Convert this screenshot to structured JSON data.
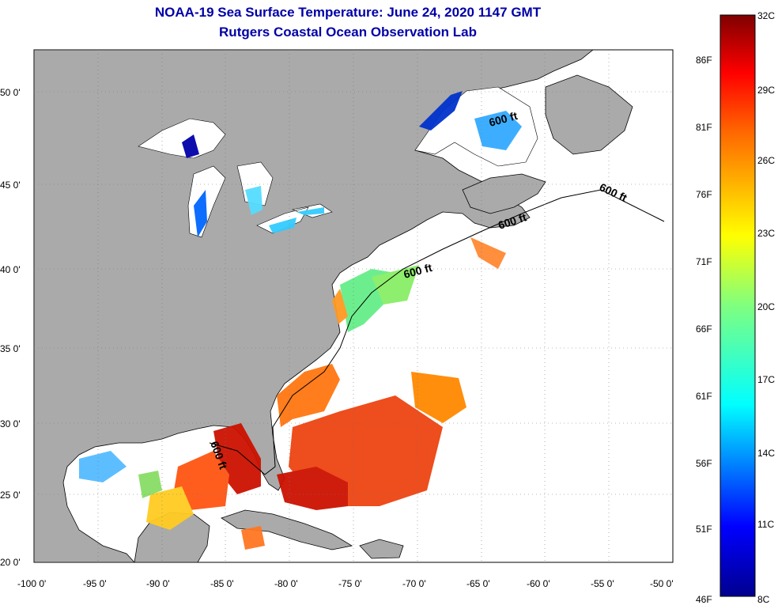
{
  "title": "NOAA-19 Sea Surface Temperature:  June 24, 2020 1147 GMT",
  "subtitle": "Rutgers Coastal Ocean Observation Lab",
  "lat_ticks": [
    "50 0'",
    "45 0'",
    "40 0'",
    "35 0'",
    "30 0'",
    "25 0'",
    "20 0'"
  ],
  "lon_ticks": [
    "-100 0'",
    "-95 0'",
    "-90 0'",
    "-85 0'",
    "-80 0'",
    "-75 0'",
    "-70 0'",
    "-65 0'",
    "-60 0'",
    "-55 0'",
    "-50 0'"
  ],
  "contour_labels": [
    "600 ft",
    "600 ft",
    "600 ft",
    "600 ft",
    "600 ft"
  ],
  "colorbar": {
    "celsius": [
      "32C",
      "29C",
      "26C",
      "23C",
      "20C",
      "17C",
      "14C",
      "11C",
      "8C"
    ],
    "fahrenheit": [
      "86F",
      "81F",
      "76F",
      "71F",
      "66F",
      "61F",
      "56F",
      "51F",
      "46F"
    ],
    "range_celsius": [
      8,
      32
    ]
  },
  "colors": {
    "land": "#aaaaaa",
    "no_data": "#ffffff",
    "title": "#0000a8",
    "warm": "#cc1100",
    "cold": "#0000aa"
  }
}
